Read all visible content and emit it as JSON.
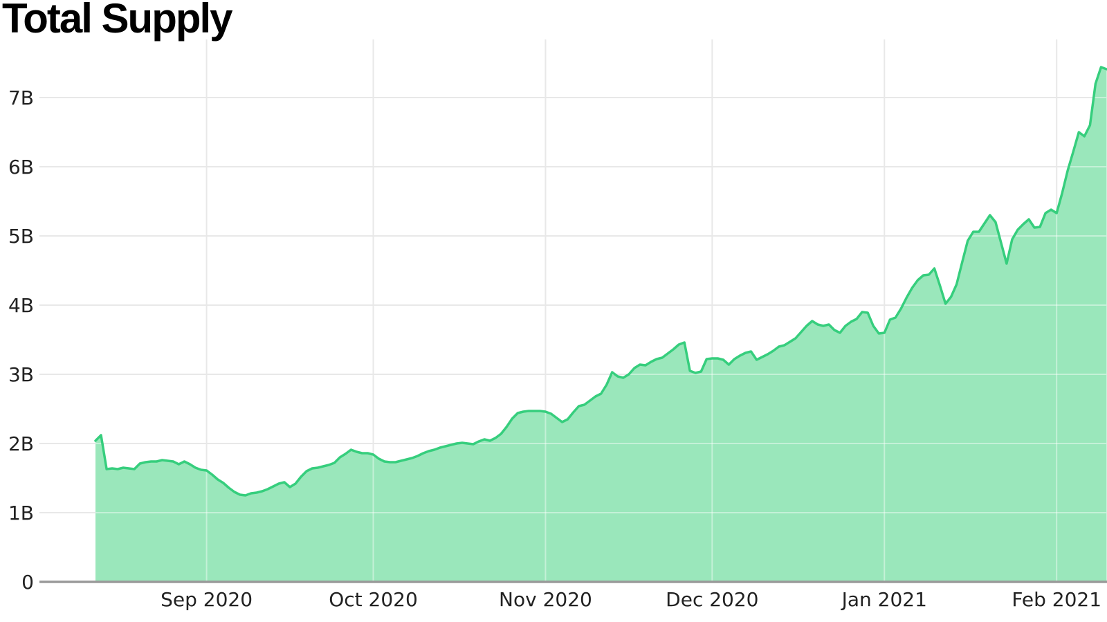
{
  "chart_data": {
    "type": "area",
    "title": "Total Supply",
    "xlabel": "",
    "ylabel": "",
    "grid": true,
    "legend": "none",
    "y_axis": {
      "unit": "billions",
      "range": [
        0,
        7.85
      ],
      "ticks": [
        {
          "value": 0,
          "label": "0"
        },
        {
          "value": 1,
          "label": "1B"
        },
        {
          "value": 2,
          "label": "2B"
        },
        {
          "value": 3,
          "label": "3B"
        },
        {
          "value": 4,
          "label": "4B"
        },
        {
          "value": 5,
          "label": "5B"
        },
        {
          "value": 6,
          "label": "6B"
        },
        {
          "value": 7,
          "label": "7B"
        }
      ]
    },
    "x_axis": {
      "range": [
        "2020-08-12",
        "2021-02-10"
      ],
      "ticks": [
        {
          "date": "2020-09-01",
          "label": "Sep 2020"
        },
        {
          "date": "2020-10-01",
          "label": "Oct 2020"
        },
        {
          "date": "2020-11-01",
          "label": "Nov 2020"
        },
        {
          "date": "2020-12-01",
          "label": "Dec 2020"
        },
        {
          "date": "2021-01-01",
          "label": "Jan 2021"
        },
        {
          "date": "2021-02-01",
          "label": "Feb 2021"
        }
      ]
    },
    "colors": {
      "line": "#36ce7d",
      "fill": "#9ae7bb",
      "grid": "#e8e8e8",
      "grid_over_fill": "rgba(255,255,255,0.42)",
      "axis": "#9a9a9a",
      "tick_text": "#222222",
      "title_text": "#000000"
    },
    "series": [
      {
        "name": "Total Supply",
        "points": [
          [
            "2020-08-12",
            2.04
          ],
          [
            "2020-08-13",
            2.12
          ],
          [
            "2020-08-14",
            1.63
          ],
          [
            "2020-08-15",
            1.64
          ],
          [
            "2020-08-16",
            1.63
          ],
          [
            "2020-08-17",
            1.65
          ],
          [
            "2020-08-18",
            1.64
          ],
          [
            "2020-08-19",
            1.63
          ],
          [
            "2020-08-20",
            1.71
          ],
          [
            "2020-08-21",
            1.73
          ],
          [
            "2020-08-22",
            1.74
          ],
          [
            "2020-08-23",
            1.74
          ],
          [
            "2020-08-24",
            1.76
          ],
          [
            "2020-08-25",
            1.75
          ],
          [
            "2020-08-26",
            1.74
          ],
          [
            "2020-08-27",
            1.7
          ],
          [
            "2020-08-28",
            1.74
          ],
          [
            "2020-08-29",
            1.7
          ],
          [
            "2020-08-30",
            1.65
          ],
          [
            "2020-08-31",
            1.62
          ],
          [
            "2020-09-01",
            1.61
          ],
          [
            "2020-09-02",
            1.55
          ],
          [
            "2020-09-03",
            1.48
          ],
          [
            "2020-09-04",
            1.43
          ],
          [
            "2020-09-05",
            1.36
          ],
          [
            "2020-09-06",
            1.3
          ],
          [
            "2020-09-07",
            1.26
          ],
          [
            "2020-09-08",
            1.25
          ],
          [
            "2020-09-09",
            1.28
          ],
          [
            "2020-09-10",
            1.29
          ],
          [
            "2020-09-11",
            1.31
          ],
          [
            "2020-09-12",
            1.34
          ],
          [
            "2020-09-13",
            1.38
          ],
          [
            "2020-09-14",
            1.42
          ],
          [
            "2020-09-15",
            1.44
          ],
          [
            "2020-09-16",
            1.37
          ],
          [
            "2020-09-17",
            1.42
          ],
          [
            "2020-09-18",
            1.52
          ],
          [
            "2020-09-19",
            1.6
          ],
          [
            "2020-09-20",
            1.64
          ],
          [
            "2020-09-21",
            1.65
          ],
          [
            "2020-09-22",
            1.67
          ],
          [
            "2020-09-23",
            1.69
          ],
          [
            "2020-09-24",
            1.72
          ],
          [
            "2020-09-25",
            1.8
          ],
          [
            "2020-09-26",
            1.85
          ],
          [
            "2020-09-27",
            1.91
          ],
          [
            "2020-09-28",
            1.88
          ],
          [
            "2020-09-29",
            1.86
          ],
          [
            "2020-09-30",
            1.86
          ],
          [
            "2020-10-01",
            1.84
          ],
          [
            "2020-10-02",
            1.78
          ],
          [
            "2020-10-03",
            1.74
          ],
          [
            "2020-10-04",
            1.73
          ],
          [
            "2020-10-05",
            1.73
          ],
          [
            "2020-10-06",
            1.75
          ],
          [
            "2020-10-07",
            1.77
          ],
          [
            "2020-10-08",
            1.79
          ],
          [
            "2020-10-09",
            1.82
          ],
          [
            "2020-10-10",
            1.86
          ],
          [
            "2020-10-11",
            1.89
          ],
          [
            "2020-10-12",
            1.91
          ],
          [
            "2020-10-13",
            1.94
          ],
          [
            "2020-10-14",
            1.96
          ],
          [
            "2020-10-15",
            1.98
          ],
          [
            "2020-10-16",
            2.0
          ],
          [
            "2020-10-17",
            2.01
          ],
          [
            "2020-10-18",
            2.0
          ],
          [
            "2020-10-19",
            1.99
          ],
          [
            "2020-10-20",
            2.03
          ],
          [
            "2020-10-21",
            2.06
          ],
          [
            "2020-10-22",
            2.04
          ],
          [
            "2020-10-23",
            2.08
          ],
          [
            "2020-10-24",
            2.14
          ],
          [
            "2020-10-25",
            2.24
          ],
          [
            "2020-10-26",
            2.36
          ],
          [
            "2020-10-27",
            2.44
          ],
          [
            "2020-10-28",
            2.46
          ],
          [
            "2020-10-29",
            2.47
          ],
          [
            "2020-10-30",
            2.47
          ],
          [
            "2020-10-31",
            2.47
          ],
          [
            "2020-11-01",
            2.46
          ],
          [
            "2020-11-02",
            2.43
          ],
          [
            "2020-11-03",
            2.37
          ],
          [
            "2020-11-04",
            2.31
          ],
          [
            "2020-11-05",
            2.35
          ],
          [
            "2020-11-06",
            2.45
          ],
          [
            "2020-11-07",
            2.54
          ],
          [
            "2020-11-08",
            2.56
          ],
          [
            "2020-11-09",
            2.62
          ],
          [
            "2020-11-10",
            2.68
          ],
          [
            "2020-11-11",
            2.72
          ],
          [
            "2020-11-12",
            2.85
          ],
          [
            "2020-11-13",
            3.03
          ],
          [
            "2020-11-14",
            2.97
          ],
          [
            "2020-11-15",
            2.95
          ],
          [
            "2020-11-16",
            3.0
          ],
          [
            "2020-11-17",
            3.09
          ],
          [
            "2020-11-18",
            3.14
          ],
          [
            "2020-11-19",
            3.13
          ],
          [
            "2020-11-20",
            3.18
          ],
          [
            "2020-11-21",
            3.22
          ],
          [
            "2020-11-22",
            3.24
          ],
          [
            "2020-11-23",
            3.3
          ],
          [
            "2020-11-24",
            3.36
          ],
          [
            "2020-11-25",
            3.43
          ],
          [
            "2020-11-26",
            3.46
          ],
          [
            "2020-11-27",
            3.05
          ],
          [
            "2020-11-28",
            3.02
          ],
          [
            "2020-11-29",
            3.04
          ],
          [
            "2020-11-30",
            3.22
          ],
          [
            "2020-12-01",
            3.23
          ],
          [
            "2020-12-02",
            3.23
          ],
          [
            "2020-12-03",
            3.21
          ],
          [
            "2020-12-04",
            3.14
          ],
          [
            "2020-12-05",
            3.22
          ],
          [
            "2020-12-06",
            3.27
          ],
          [
            "2020-12-07",
            3.31
          ],
          [
            "2020-12-08",
            3.33
          ],
          [
            "2020-12-09",
            3.21
          ],
          [
            "2020-12-10",
            3.25
          ],
          [
            "2020-12-11",
            3.29
          ],
          [
            "2020-12-12",
            3.34
          ],
          [
            "2020-12-13",
            3.4
          ],
          [
            "2020-12-14",
            3.42
          ],
          [
            "2020-12-15",
            3.47
          ],
          [
            "2020-12-16",
            3.52
          ],
          [
            "2020-12-17",
            3.61
          ],
          [
            "2020-12-18",
            3.7
          ],
          [
            "2020-12-19",
            3.77
          ],
          [
            "2020-12-20",
            3.72
          ],
          [
            "2020-12-21",
            3.7
          ],
          [
            "2020-12-22",
            3.72
          ],
          [
            "2020-12-23",
            3.64
          ],
          [
            "2020-12-24",
            3.6
          ],
          [
            "2020-12-25",
            3.7
          ],
          [
            "2020-12-26",
            3.76
          ],
          [
            "2020-12-27",
            3.8
          ],
          [
            "2020-12-28",
            3.9
          ],
          [
            "2020-12-29",
            3.89
          ],
          [
            "2020-12-30",
            3.7
          ],
          [
            "2020-12-31",
            3.59
          ],
          [
            "2021-01-01",
            3.6
          ],
          [
            "2021-01-02",
            3.79
          ],
          [
            "2021-01-03",
            3.82
          ],
          [
            "2021-01-04",
            3.95
          ],
          [
            "2021-01-05",
            4.11
          ],
          [
            "2021-01-06",
            4.25
          ],
          [
            "2021-01-07",
            4.36
          ],
          [
            "2021-01-08",
            4.43
          ],
          [
            "2021-01-09",
            4.44
          ],
          [
            "2021-01-10",
            4.53
          ],
          [
            "2021-01-11",
            4.28
          ],
          [
            "2021-01-12",
            4.02
          ],
          [
            "2021-01-13",
            4.12
          ],
          [
            "2021-01-14",
            4.3
          ],
          [
            "2021-01-15",
            4.62
          ],
          [
            "2021-01-16",
            4.93
          ],
          [
            "2021-01-17",
            5.06
          ],
          [
            "2021-01-18",
            5.06
          ],
          [
            "2021-01-19",
            5.18
          ],
          [
            "2021-01-20",
            5.3
          ],
          [
            "2021-01-21",
            5.2
          ],
          [
            "2021-01-22",
            4.9
          ],
          [
            "2021-01-23",
            4.6
          ],
          [
            "2021-01-24",
            4.95
          ],
          [
            "2021-01-25",
            5.09
          ],
          [
            "2021-01-26",
            5.17
          ],
          [
            "2021-01-27",
            5.24
          ],
          [
            "2021-01-28",
            5.12
          ],
          [
            "2021-01-29",
            5.13
          ],
          [
            "2021-01-30",
            5.33
          ],
          [
            "2021-01-31",
            5.38
          ],
          [
            "2021-02-01",
            5.33
          ],
          [
            "2021-02-02",
            5.62
          ],
          [
            "2021-02-03",
            5.95
          ],
          [
            "2021-02-04",
            6.22
          ],
          [
            "2021-02-05",
            6.5
          ],
          [
            "2021-02-06",
            6.44
          ],
          [
            "2021-02-07",
            6.6
          ],
          [
            "2021-02-08",
            7.2
          ],
          [
            "2021-02-09",
            7.44
          ],
          [
            "2021-02-10",
            7.41
          ]
        ]
      }
    ]
  }
}
